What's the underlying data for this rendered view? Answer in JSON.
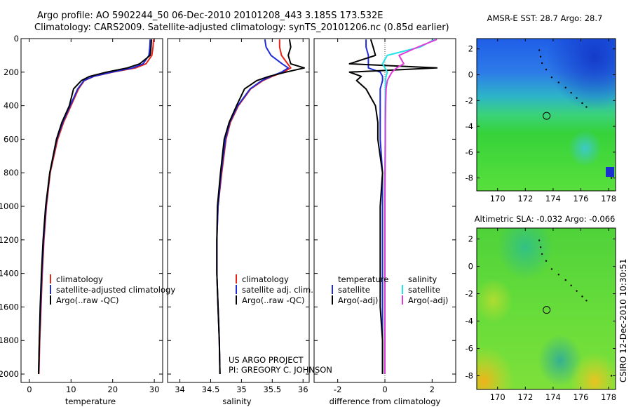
{
  "header": {
    "title_line1": "Argo profile: AO 5902244_50 06-Dec-2010 20101208_443 3.185S 173.532E",
    "title_line2": "Climatology: CARS2009. Satellite-adjusted climatology: synTS_20101206.nc (0.85d earlier)"
  },
  "side_label": "CSIRO 12-Dec-2010 10:30:51",
  "project_note": {
    "line1": "US ARGO PROJECT",
    "line2": "PI: GREGORY C. JOHNSON"
  },
  "colors": {
    "climatology": "#e8231a",
    "satellite_adjusted": "#1f2bd6",
    "argo": "#000000",
    "salinity_satellite": "#22e3e8",
    "salinity_argo": "#e23ad8"
  },
  "chart_data": [
    {
      "id": "temperature",
      "type": "line",
      "xlabel": "temperature",
      "ylabel": "",
      "xlim": [
        -2,
        32
      ],
      "ylim": [
        2050,
        0
      ],
      "xticks": [
        0,
        10,
        20,
        30
      ],
      "yticks": [
        0,
        200,
        400,
        600,
        800,
        1000,
        1200,
        1400,
        1600,
        1800,
        2000
      ],
      "depth": [
        5,
        50,
        100,
        150,
        175,
        200,
        225,
        250,
        300,
        400,
        500,
        600,
        800,
        1000,
        1200,
        1400,
        1600,
        1800,
        2000
      ],
      "series": [
        {
          "name": "climatology",
          "color_key": "climatology",
          "values": [
            29.8,
            29.7,
            29.4,
            28.0,
            25.5,
            20.0,
            15.5,
            13.2,
            11.8,
            10.0,
            8.2,
            6.8,
            5.0,
            4.1,
            3.5,
            3.1,
            2.8,
            2.5,
            2.3
          ]
        },
        {
          "name": "satellite-adjusted climatology",
          "color_key": "satellite_adjusted",
          "values": [
            29.0,
            28.9,
            28.7,
            27.3,
            24.8,
            19.8,
            15.4,
            13.1,
            11.6,
            9.8,
            8.0,
            6.6,
            4.9,
            4.0,
            3.4,
            3.0,
            2.7,
            2.4,
            2.2
          ]
        },
        {
          "name": "Argo(..raw -QC)",
          "color_key": "argo",
          "values": [
            29.3,
            29.2,
            29.0,
            26.5,
            23.5,
            18.5,
            14.5,
            12.5,
            10.6,
            9.6,
            7.8,
            6.5,
            4.9,
            3.9,
            3.3,
            2.9,
            2.6,
            2.4,
            2.2
          ]
        }
      ],
      "legend": {
        "placement": "lower-right",
        "entries": [
          "climatology",
          "satellite-adjusted climatology",
          "Argo(..raw -QC)"
        ]
      }
    },
    {
      "id": "salinity",
      "type": "line",
      "xlabel": "salinity",
      "xlim": [
        33.8,
        36.1
      ],
      "ylim": [
        2050,
        0
      ],
      "xticks": [
        34,
        34.5,
        35,
        35.5,
        36
      ],
      "xtick_labels": [
        "34",
        "34.5",
        "35",
        "35.5",
        "36"
      ],
      "depth": [
        5,
        50,
        100,
        150,
        175,
        200,
        225,
        250,
        300,
        400,
        500,
        600,
        800,
        1000,
        1200,
        1400,
        1600,
        1800,
        2000
      ],
      "series": [
        {
          "name": "climatology",
          "color_key": "climatology",
          "values": [
            35.62,
            35.62,
            35.65,
            35.75,
            35.8,
            35.68,
            35.5,
            35.35,
            35.15,
            34.95,
            34.82,
            34.75,
            34.68,
            34.62,
            34.6,
            34.6,
            34.62,
            34.64,
            34.65
          ]
        },
        {
          "name": "satellite adj. clim.",
          "color_key": "satellite_adjusted",
          "values": [
            35.38,
            35.4,
            35.48,
            35.66,
            35.76,
            35.65,
            35.48,
            35.33,
            35.14,
            34.94,
            34.81,
            34.74,
            34.67,
            34.62,
            34.6,
            34.6,
            34.62,
            34.64,
            34.65
          ]
        },
        {
          "name": "Argo(..raw -QC)",
          "color_key": "argo",
          "values": [
            35.78,
            35.8,
            35.76,
            35.8,
            36.02,
            35.72,
            35.45,
            35.25,
            35.05,
            34.92,
            34.8,
            34.72,
            34.66,
            34.61,
            34.6,
            34.6,
            34.62,
            34.64,
            34.65
          ]
        }
      ],
      "legend": {
        "placement": "lower-right",
        "entries": [
          "climatology",
          "satellite adj. clim.",
          "Argo(..raw -QC)"
        ]
      }
    },
    {
      "id": "difference",
      "type": "line",
      "xlabel": "difference from climatology",
      "xlim": [
        -3,
        3
      ],
      "ylim": [
        2050,
        0
      ],
      "xticks": [
        -2,
        0,
        2
      ],
      "depth": [
        5,
        50,
        100,
        150,
        175,
        200,
        225,
        250,
        300,
        400,
        500,
        600,
        800,
        1000,
        1200,
        1400,
        1600,
        1800,
        2000
      ],
      "series": [
        {
          "name": "temperature satellite",
          "color_key": "satellite_adjusted",
          "values": [
            -0.8,
            -0.8,
            -0.7,
            -0.7,
            -0.7,
            -0.2,
            -0.1,
            -0.1,
            -0.2,
            -0.2,
            -0.2,
            -0.2,
            -0.1,
            -0.1,
            -0.1,
            -0.1,
            -0.1,
            -0.1,
            -0.1
          ]
        },
        {
          "name": "temperature Argo(-adj)",
          "color_key": "argo",
          "values": [
            -0.6,
            -0.5,
            -0.4,
            -1.5,
            2.2,
            -1.5,
            -1.0,
            -1.2,
            -0.8,
            -0.4,
            -0.3,
            -0.3,
            -0.1,
            -0.2,
            -0.2,
            -0.2,
            -0.2,
            -0.1,
            -0.1
          ]
        },
        {
          "name": "salinity satellite",
          "color_key": "salinity_satellite",
          "values": [
            2.1,
            1.5,
            0.1,
            -0.1,
            0.0,
            0.1,
            0.05,
            0.02,
            0.02,
            0.01,
            0.01,
            0.01,
            0.0,
            0.0,
            0.0,
            0.0,
            0.0,
            0.0,
            0.0
          ]
        },
        {
          "name": "salinity Argo(-adj)",
          "color_key": "salinity_argo",
          "values": [
            2.2,
            1.4,
            0.6,
            0.8,
            0.5,
            0.3,
            0.2,
            0.1,
            0.05,
            0.03,
            0.02,
            0.02,
            0.01,
            0.0,
            0.0,
            0.0,
            0.0,
            0.0,
            0.0
          ]
        }
      ],
      "legend": {
        "placement": "lower-right",
        "group1_title": "temperature",
        "group2_title": "salinity",
        "entries": [
          "satellite",
          "Argo(-adj)",
          "satellite",
          "Argo(-adj)"
        ]
      }
    },
    {
      "id": "sst_map",
      "type": "heatmap",
      "title": "AMSR-E SST: 28.7 Argo: 28.7",
      "xlim": [
        168.5,
        178.5
      ],
      "ylim": [
        -9,
        2.8
      ],
      "xticks": [
        170,
        172,
        174,
        176,
        178
      ],
      "yticks": [
        2,
        0,
        -2,
        -4,
        -6,
        -8
      ],
      "float_position": {
        "lon": 173.532,
        "lat": -3.185
      }
    },
    {
      "id": "sla_map",
      "type": "heatmap",
      "title": "Altimetric SLA: -0.032 Argo: -0.066",
      "xlim": [
        168.5,
        178.5
      ],
      "ylim": [
        -9,
        2.8
      ],
      "xticks": [
        170,
        172,
        174,
        176,
        178
      ],
      "yticks": [
        2,
        0,
        -2,
        -4,
        -6,
        -8
      ],
      "float_position": {
        "lon": 173.532,
        "lat": -3.185
      }
    }
  ]
}
